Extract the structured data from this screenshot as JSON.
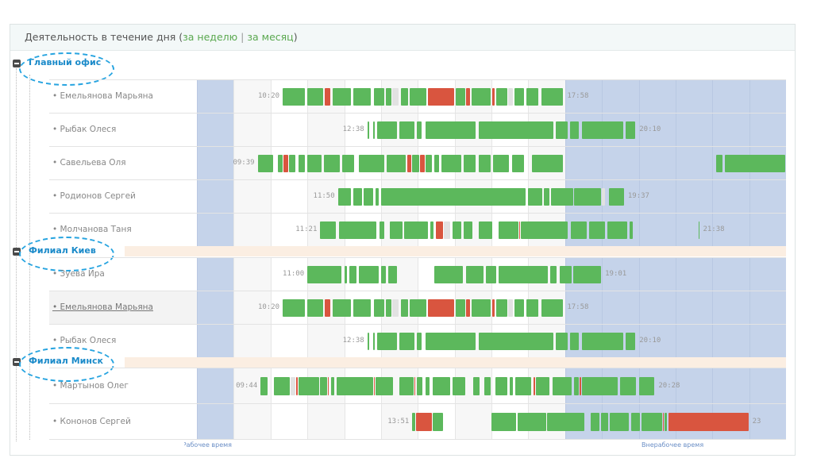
{
  "header": {
    "title": "Деятельность в течение дня (",
    "week_link": "за неделю",
    "separator": "|",
    "month_link": "за месяц",
    "close": ")"
  },
  "colors": {
    "active": "#5cb85c",
    "idle": "#d9553f",
    "gap": "#e2e2e2",
    "off_hours": "#c5d3ea",
    "group_band": "#fbeee2",
    "group_title": "#1a8ac9"
  },
  "timeline": {
    "start_hour": 8,
    "end_hour": 24,
    "work_start": 9,
    "work_end": 18,
    "work_label": "Рабочее время",
    "offwork_label": "Внерабочее время"
  },
  "groups": [
    {
      "name": "Главный офис",
      "employees": [
        {
          "name": "Емельянова Марьяна",
          "start": "10:20",
          "end": "17:58",
          "segments": [
            [
              10.33,
              10.95,
              "g"
            ],
            [
              11.0,
              11.45,
              "g"
            ],
            [
              11.48,
              11.65,
              "r"
            ],
            [
              11.68,
              12.2,
              "g"
            ],
            [
              12.25,
              12.75,
              "g"
            ],
            [
              12.8,
              13.1,
              "g"
            ],
            [
              13.13,
              13.3,
              "g"
            ],
            [
              13.3,
              13.5,
              "x"
            ],
            [
              13.55,
              13.75,
              "g"
            ],
            [
              13.78,
              14.25,
              "g"
            ],
            [
              14.27,
              15.0,
              "r"
            ],
            [
              15.02,
              15.3,
              "g"
            ],
            [
              15.32,
              15.45,
              "r"
            ],
            [
              15.47,
              16.0,
              "g"
            ],
            [
              16.02,
              16.1,
              "r"
            ],
            [
              16.12,
              16.45,
              "g"
            ],
            [
              16.45,
              16.6,
              "x"
            ],
            [
              16.62,
              16.9,
              "g"
            ],
            [
              16.95,
              17.3,
              "g"
            ],
            [
              17.35,
              17.97,
              "g"
            ]
          ]
        },
        {
          "name": "Рыбак Олеся",
          "start": "12:38",
          "end": "20:10",
          "segments": [
            [
              12.63,
              12.7,
              "g"
            ],
            [
              12.78,
              12.85,
              "g"
            ],
            [
              12.9,
              13.45,
              "g"
            ],
            [
              13.5,
              13.92,
              "g"
            ],
            [
              13.98,
              14.12,
              "g"
            ],
            [
              14.2,
              15.6,
              "g"
            ],
            [
              15.66,
              17.7,
              "g"
            ],
            [
              17.74,
              18.1,
              "g"
            ],
            [
              18.14,
              18.4,
              "g"
            ],
            [
              18.45,
              19.6,
              "g"
            ],
            [
              19.65,
              19.93,
              "g"
            ]
          ]
        },
        {
          "name": "Савельева Оля",
          "start": "09:39",
          "end": "",
          "segments": [
            [
              9.65,
              10.1,
              "g"
            ],
            [
              10.2,
              10.35,
              "g"
            ],
            [
              10.35,
              10.5,
              "r"
            ],
            [
              10.5,
              10.7,
              "g"
            ],
            [
              10.75,
              10.95,
              "g"
            ],
            [
              11.0,
              11.4,
              "g"
            ],
            [
              11.45,
              11.9,
              "g"
            ],
            [
              11.95,
              12.3,
              "g"
            ],
            [
              12.4,
              13.1,
              "g"
            ],
            [
              13.15,
              13.7,
              "g"
            ],
            [
              13.72,
              13.85,
              "r"
            ],
            [
              13.85,
              14.05,
              "g"
            ],
            [
              14.05,
              14.2,
              "r"
            ],
            [
              14.22,
              14.4,
              "g"
            ],
            [
              14.45,
              14.6,
              "g"
            ],
            [
              14.65,
              15.2,
              "g"
            ],
            [
              15.25,
              15.6,
              "g"
            ],
            [
              15.65,
              16.0,
              "g"
            ],
            [
              16.05,
              16.5,
              "g"
            ],
            [
              16.55,
              16.9,
              "g"
            ],
            [
              17.1,
              17.97,
              "g"
            ],
            [
              22.1,
              22.3,
              "g"
            ],
            [
              22.35,
              24.0,
              "g"
            ]
          ]
        },
        {
          "name": "Родионов Сергей",
          "start": "11:50",
          "end": "19:37",
          "segments": [
            [
              11.83,
              12.2,
              "g"
            ],
            [
              12.25,
              12.5,
              "g"
            ],
            [
              12.52,
              12.8,
              "g"
            ],
            [
              12.85,
              12.95,
              "g"
            ],
            [
              13.0,
              16.95,
              "g"
            ],
            [
              17.0,
              17.4,
              "g"
            ],
            [
              17.42,
              17.6,
              "g"
            ],
            [
              17.62,
              18.25,
              "g"
            ],
            [
              18.25,
              19.0,
              "g"
            ],
            [
              19.0,
              19.1,
              "x"
            ],
            [
              19.2,
              19.62,
              "g"
            ]
          ]
        },
        {
          "name": "Молчанова Таня",
          "start": "11:21",
          "end": "21:38",
          "segments": [
            [
              11.35,
              11.8,
              "g"
            ],
            [
              11.85,
              12.9,
              "g"
            ],
            [
              12.95,
              13.1,
              "g"
            ],
            [
              13.25,
              13.6,
              "g"
            ],
            [
              13.62,
              14.3,
              "g"
            ],
            [
              14.35,
              14.45,
              "g"
            ],
            [
              14.5,
              14.7,
              "r"
            ],
            [
              14.7,
              14.9,
              "x"
            ],
            [
              14.95,
              15.2,
              "g"
            ],
            [
              15.25,
              15.5,
              "g"
            ],
            [
              15.65,
              16.05,
              "g"
            ],
            [
              16.2,
              16.75,
              "g"
            ],
            [
              16.75,
              16.8,
              "r"
            ],
            [
              16.8,
              18.1,
              "g"
            ],
            [
              18.15,
              18.6,
              "g"
            ],
            [
              18.65,
              19.1,
              "g"
            ],
            [
              19.15,
              19.7,
              "g"
            ],
            [
              19.75,
              19.85,
              "g"
            ],
            [
              21.62,
              21.66,
              "g"
            ]
          ]
        }
      ]
    },
    {
      "name": "Филиал Киев",
      "employees": [
        {
          "name": "Зуева Ира",
          "start": "11:00",
          "end": "19:01",
          "segments": [
            [
              11.0,
              11.95,
              "g"
            ],
            [
              12.0,
              12.1,
              "g"
            ],
            [
              12.15,
              12.35,
              "g"
            ],
            [
              12.4,
              12.95,
              "g"
            ],
            [
              13.0,
              13.15,
              "g"
            ],
            [
              13.2,
              13.45,
              "g"
            ],
            [
              14.45,
              15.25,
              "g"
            ],
            [
              15.3,
              15.8,
              "g"
            ],
            [
              15.85,
              16.15,
              "g"
            ],
            [
              16.2,
              17.55,
              "g"
            ],
            [
              17.6,
              17.8,
              "g"
            ],
            [
              17.85,
              18.2,
              "g"
            ],
            [
              18.22,
              19.0,
              "g"
            ]
          ]
        },
        {
          "name": "Емельянова Марьяна",
          "start": "10:20",
          "end": "17:58",
          "highlight": true,
          "segments": [
            [
              10.33,
              10.95,
              "g"
            ],
            [
              11.0,
              11.45,
              "g"
            ],
            [
              11.48,
              11.65,
              "r"
            ],
            [
              11.68,
              12.2,
              "g"
            ],
            [
              12.25,
              12.75,
              "g"
            ],
            [
              12.8,
              13.1,
              "g"
            ],
            [
              13.13,
              13.3,
              "g"
            ],
            [
              13.3,
              13.5,
              "x"
            ],
            [
              13.55,
              13.75,
              "g"
            ],
            [
              13.78,
              14.25,
              "g"
            ],
            [
              14.27,
              15.0,
              "r"
            ],
            [
              15.02,
              15.3,
              "g"
            ],
            [
              15.32,
              15.45,
              "r"
            ],
            [
              15.47,
              16.0,
              "g"
            ],
            [
              16.02,
              16.1,
              "r"
            ],
            [
              16.12,
              16.45,
              "g"
            ],
            [
              16.45,
              16.6,
              "x"
            ],
            [
              16.62,
              16.9,
              "g"
            ],
            [
              16.95,
              17.3,
              "g"
            ],
            [
              17.35,
              17.97,
              "g"
            ]
          ]
        },
        {
          "name": "Рыбак Олеся",
          "start": "12:38",
          "end": "20:10",
          "segments": [
            [
              12.63,
              12.7,
              "g"
            ],
            [
              12.78,
              12.85,
              "g"
            ],
            [
              12.9,
              13.45,
              "g"
            ],
            [
              13.5,
              13.92,
              "g"
            ],
            [
              13.98,
              14.12,
              "g"
            ],
            [
              14.2,
              15.6,
              "g"
            ],
            [
              15.66,
              17.7,
              "g"
            ],
            [
              17.74,
              18.1,
              "g"
            ],
            [
              18.14,
              18.4,
              "g"
            ],
            [
              18.45,
              19.6,
              "g"
            ],
            [
              19.65,
              19.93,
              "g"
            ]
          ]
        }
      ]
    },
    {
      "name": "Филиал Минск",
      "employees": [
        {
          "name": "Мартынов Олег",
          "start": "09:44",
          "end": "20:28",
          "segments": [
            [
              9.73,
              9.95,
              "g"
            ],
            [
              10.1,
              10.55,
              "g"
            ],
            [
              10.55,
              10.7,
              "x"
            ],
            [
              10.7,
              10.73,
              "r"
            ],
            [
              10.75,
              11.35,
              "g"
            ],
            [
              11.35,
              11.55,
              "g"
            ],
            [
              11.55,
              11.6,
              "r"
            ],
            [
              11.65,
              11.75,
              "g"
            ],
            [
              11.8,
              12.8,
              "g"
            ],
            [
              12.8,
              12.86,
              "r"
            ],
            [
              12.86,
              13.35,
              "g"
            ],
            [
              13.5,
              13.9,
              "g"
            ],
            [
              13.9,
              13.95,
              "r"
            ],
            [
              13.97,
              14.15,
              "g"
            ],
            [
              14.2,
              14.35,
              "g"
            ],
            [
              14.4,
              14.9,
              "g"
            ],
            [
              14.95,
              15.3,
              "g"
            ],
            [
              15.5,
              15.7,
              "g"
            ],
            [
              15.8,
              16.0,
              "g"
            ],
            [
              16.1,
              16.45,
              "g"
            ],
            [
              16.5,
              16.6,
              "g"
            ],
            [
              16.65,
              17.1,
              "g"
            ],
            [
              17.15,
              17.2,
              "r"
            ],
            [
              17.2,
              17.6,
              "g"
            ],
            [
              17.65,
              18.2,
              "g"
            ],
            [
              18.25,
              18.4,
              "g"
            ],
            [
              18.4,
              18.45,
              "r"
            ],
            [
              18.45,
              19.45,
              "g"
            ],
            [
              19.5,
              19.95,
              "g"
            ],
            [
              20.0,
              20.45,
              "g"
            ]
          ]
        },
        {
          "name": "Кононов Сергей",
          "start": "13:51",
          "end": "23",
          "segments": [
            [
              13.85,
              13.95,
              "g"
            ],
            [
              13.95,
              14.4,
              "r"
            ],
            [
              14.4,
              14.7,
              "g"
            ],
            [
              16.0,
              16.7,
              "g"
            ],
            [
              16.72,
              17.5,
              "g"
            ],
            [
              17.52,
              18.55,
              "g"
            ],
            [
              18.7,
              18.95,
              "g"
            ],
            [
              18.98,
              19.2,
              "g"
            ],
            [
              19.22,
              19.75,
              "g"
            ],
            [
              19.8,
              20.05,
              "g"
            ],
            [
              20.08,
              20.65,
              "g"
            ],
            [
              20.65,
              20.68,
              "r"
            ],
            [
              20.7,
              20.78,
              "g"
            ],
            [
              20.8,
              23.0,
              "r"
            ]
          ]
        }
      ]
    }
  ]
}
